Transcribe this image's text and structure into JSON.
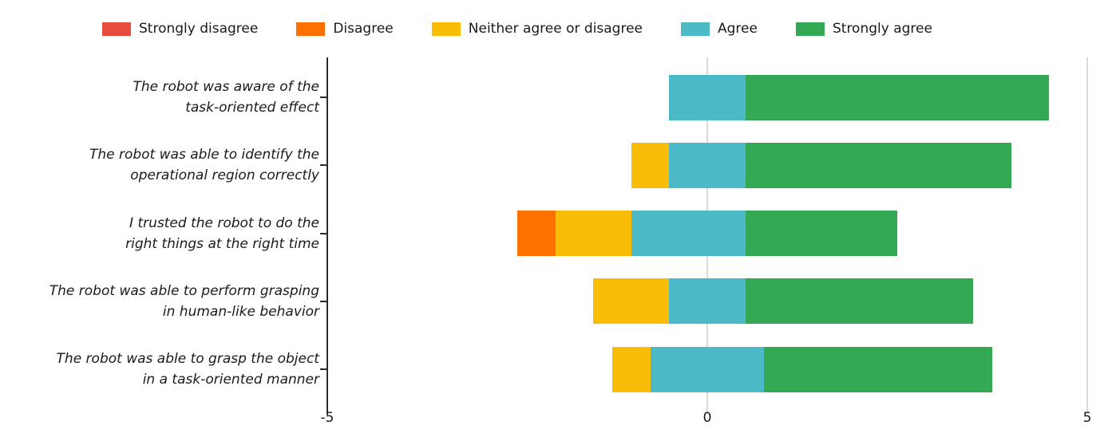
{
  "legend": {
    "items": [
      {
        "label": "Strongly disagree",
        "color": "#e74c3c"
      },
      {
        "label": "Disagree",
        "color": "#fd7100"
      },
      {
        "label": "Neither agree or disagree",
        "color": "#f9bd08"
      },
      {
        "label": "Agree",
        "color": "#4bb9c6"
      },
      {
        "label": "Strongly agree",
        "color": "#35a854"
      }
    ]
  },
  "chart_data": {
    "type": "bar",
    "orientation": "horizontal",
    "style": "diverging-stacked-likert",
    "title": "",
    "xlabel": "",
    "ylabel": "",
    "xlim": [
      -5,
      5
    ],
    "x_ticks": [
      -5,
      0,
      5
    ],
    "x_tick_labels": [
      "-5",
      "0",
      "5"
    ],
    "gridlines_at": [
      0,
      5
    ],
    "legend_position": "top",
    "series_order": [
      "Strongly disagree",
      "Disagree",
      "Neither agree or disagree",
      "Agree",
      "Strongly agree"
    ],
    "rows": [
      {
        "label": [
          "The robot was aware of the",
          "task-oriented effect"
        ],
        "segments": [
          {
            "category": "Agree",
            "start": -0.5,
            "end": 0.5,
            "value": 1.0
          },
          {
            "category": "Strongly agree",
            "start": 0.5,
            "end": 4.5,
            "value": 4.0
          }
        ]
      },
      {
        "label": [
          "The robot was able to identify the",
          "operational region correctly"
        ],
        "segments": [
          {
            "category": "Neither agree or disagree",
            "start": -1.0,
            "end": -0.5,
            "value": 0.5
          },
          {
            "category": "Agree",
            "start": -0.5,
            "end": 0.5,
            "value": 1.0
          },
          {
            "category": "Strongly agree",
            "start": 0.5,
            "end": 4.0,
            "value": 3.5
          }
        ]
      },
      {
        "label": [
          "I trusted the robot to do the",
          "right things at the right time"
        ],
        "segments": [
          {
            "category": "Disagree",
            "start": -2.5,
            "end": -2.0,
            "value": 0.5
          },
          {
            "category": "Neither agree or disagree",
            "start": -2.0,
            "end": -1.0,
            "value": 1.0
          },
          {
            "category": "Agree",
            "start": -1.0,
            "end": 0.5,
            "value": 1.5
          },
          {
            "category": "Strongly agree",
            "start": 0.5,
            "end": 2.5,
            "value": 2.0
          }
        ]
      },
      {
        "label": [
          "The robot was able to perform grasping",
          "in human-like behavior"
        ],
        "segments": [
          {
            "category": "Neither agree or disagree",
            "start": -1.5,
            "end": -0.5,
            "value": 1.0
          },
          {
            "category": "Agree",
            "start": -0.5,
            "end": 0.5,
            "value": 1.0
          },
          {
            "category": "Strongly agree",
            "start": 0.5,
            "end": 3.5,
            "value": 3.0
          }
        ]
      },
      {
        "label": [
          "The robot was able to grasp the object",
          "in a task-oriented manner"
        ],
        "segments": [
          {
            "category": "Neither agree or disagree",
            "start": -1.25,
            "end": -0.75,
            "value": 0.5
          },
          {
            "category": "Agree",
            "start": -0.75,
            "end": 0.75,
            "value": 1.5
          },
          {
            "category": "Strongly agree",
            "start": 0.75,
            "end": 3.75,
            "value": 3.0
          }
        ]
      }
    ]
  }
}
